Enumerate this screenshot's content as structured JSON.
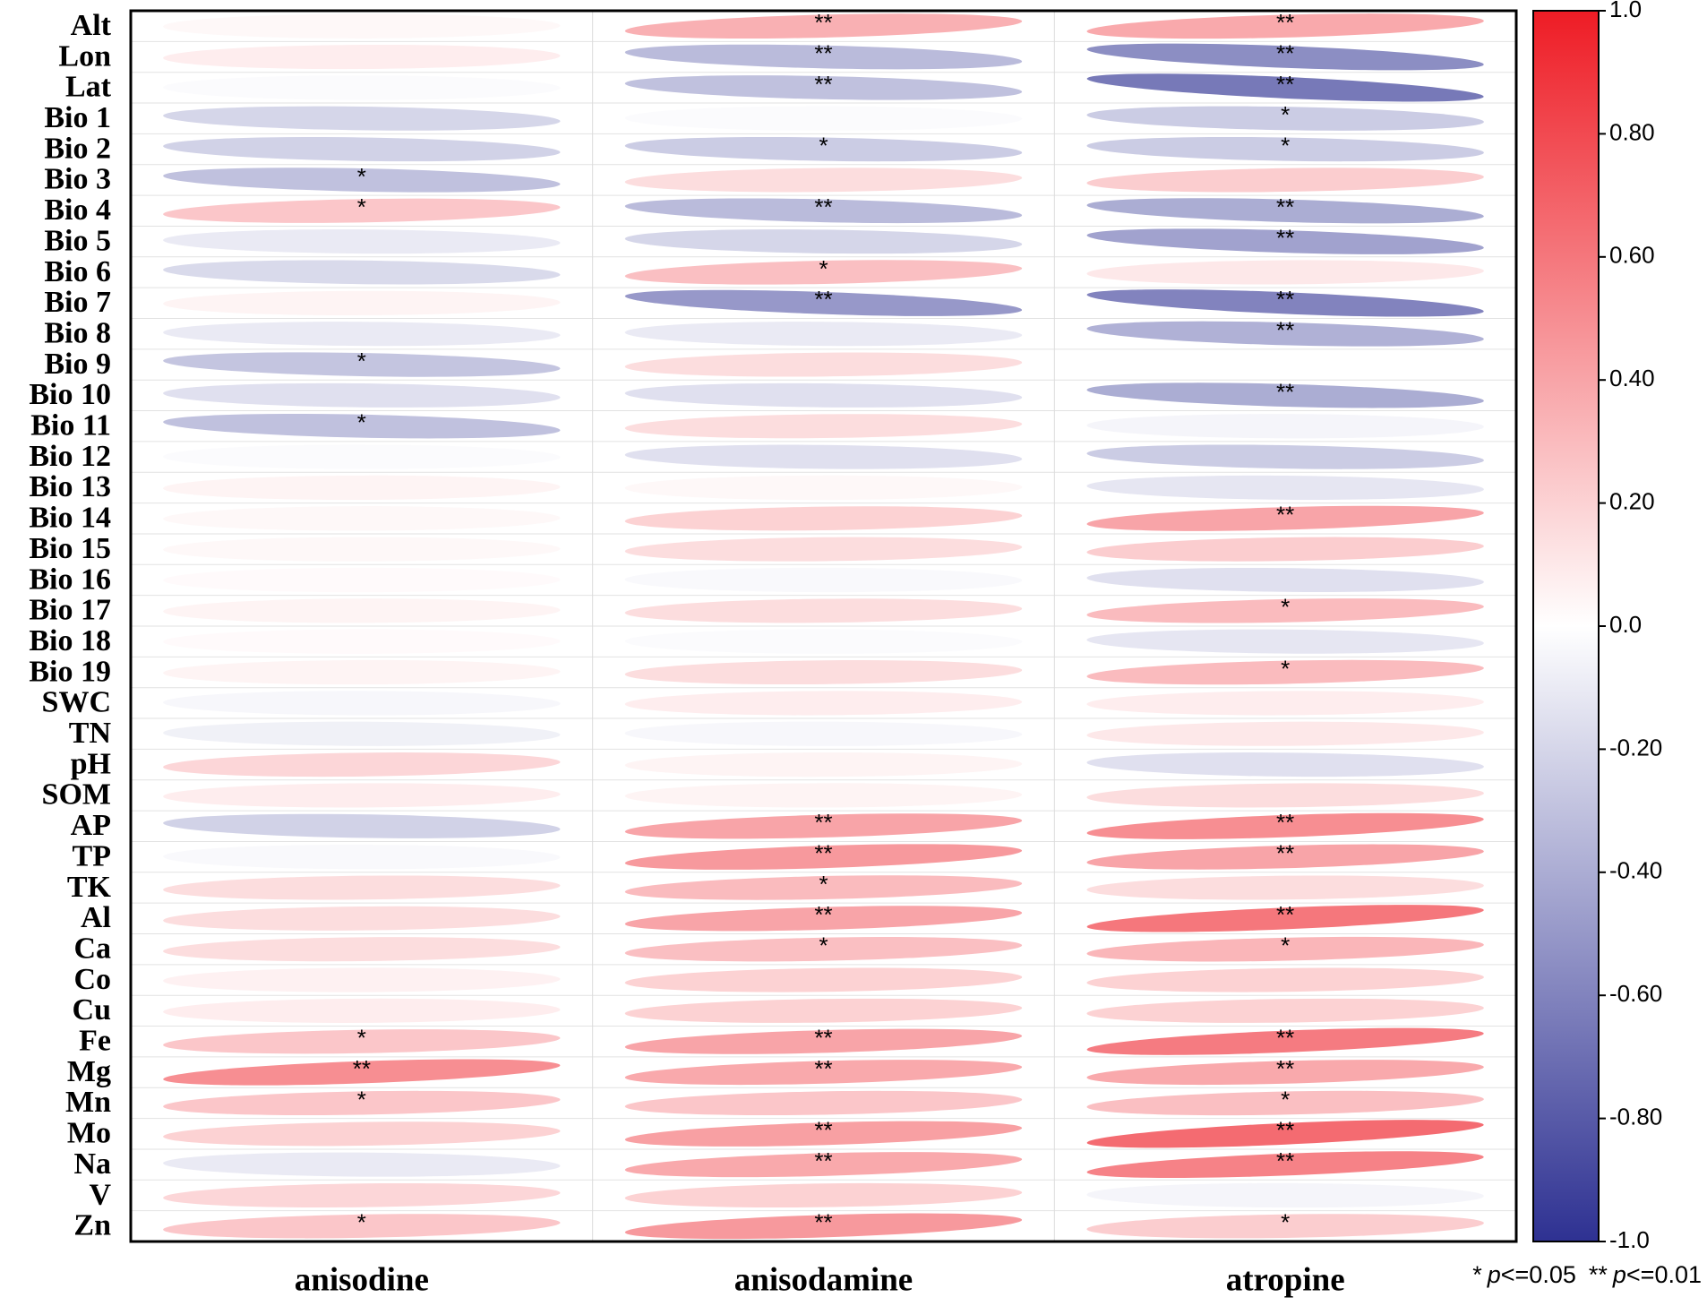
{
  "chart_data": {
    "type": "correlation-ellipse",
    "categories": [
      "Alt",
      "Lon",
      "Lat",
      "Bio 1",
      "Bio 2",
      "Bio 3",
      "Bio 4",
      "Bio 5",
      "Bio 6",
      "Bio 7",
      "Bio 8",
      "Bio 9",
      "Bio 10",
      "Bio 11",
      "Bio 12",
      "Bio 13",
      "Bio 14",
      "Bio 15",
      "Bio 16",
      "Bio 17",
      "Bio 18",
      "Bio 19",
      "SWC",
      "TN",
      "pH",
      "SOM",
      "AP",
      "TP",
      "TK",
      "Al",
      "Ca",
      "Co",
      "Cu",
      "Fe",
      "Mg",
      "Mn",
      "Mo",
      "Na",
      "V",
      "Zn"
    ],
    "series": [
      {
        "name": "anisodine",
        "values": [
          0.03,
          0.08,
          -0.02,
          -0.2,
          -0.22,
          -0.3,
          0.25,
          -0.1,
          -0.18,
          0.05,
          -0.1,
          -0.28,
          -0.15,
          -0.3,
          -0.02,
          0.05,
          0.03,
          0.03,
          0.02,
          0.05,
          0.02,
          0.05,
          -0.04,
          -0.07,
          0.18,
          0.08,
          -0.22,
          -0.03,
          0.15,
          0.15,
          0.15,
          0.06,
          0.08,
          0.25,
          0.5,
          0.25,
          0.2,
          -0.1,
          0.18,
          0.25
        ],
        "significance": [
          null,
          null,
          null,
          null,
          null,
          "*",
          "*",
          null,
          null,
          null,
          null,
          "*",
          null,
          "*",
          null,
          null,
          null,
          null,
          null,
          null,
          null,
          null,
          null,
          null,
          null,
          null,
          null,
          null,
          null,
          null,
          null,
          null,
          null,
          "*",
          "**",
          "*",
          null,
          null,
          null,
          "*"
        ]
      },
      {
        "name": "anisodamine",
        "values": [
          0.35,
          -0.33,
          -0.3,
          -0.02,
          -0.25,
          0.15,
          -0.33,
          -0.2,
          0.28,
          -0.5,
          -0.1,
          0.15,
          -0.15,
          0.15,
          -0.15,
          0.03,
          0.2,
          0.15,
          -0.03,
          0.15,
          -0.02,
          0.15,
          0.08,
          -0.04,
          0.05,
          0.05,
          0.4,
          0.45,
          0.3,
          0.4,
          0.28,
          0.2,
          0.2,
          0.4,
          0.38,
          0.25,
          0.42,
          0.38,
          0.2,
          0.45
        ],
        "significance": [
          "**",
          "**",
          "**",
          null,
          "*",
          null,
          "**",
          null,
          "*",
          "**",
          null,
          null,
          null,
          null,
          null,
          null,
          null,
          null,
          null,
          null,
          null,
          null,
          null,
          null,
          null,
          null,
          "**",
          "**",
          "*",
          "**",
          "*",
          null,
          null,
          "**",
          "**",
          null,
          "**",
          "**",
          null,
          "**"
        ]
      },
      {
        "name": "atropine",
        "values": [
          0.38,
          -0.55,
          -0.65,
          -0.25,
          -0.25,
          0.22,
          -0.4,
          -0.45,
          0.1,
          -0.6,
          -0.38,
          0,
          -0.4,
          -0.05,
          -0.25,
          -0.12,
          0.4,
          0.22,
          -0.15,
          0.3,
          -0.12,
          0.3,
          0.08,
          0.1,
          -0.15,
          0.15,
          0.5,
          0.4,
          0.15,
          0.6,
          0.32,
          0.2,
          0.2,
          0.58,
          0.38,
          0.28,
          0.65,
          0.55,
          -0.05,
          0.22
        ],
        "significance": [
          "**",
          "**",
          "**",
          "*",
          "*",
          null,
          "**",
          "**",
          null,
          "**",
          "**",
          null,
          "**",
          null,
          null,
          null,
          "**",
          null,
          null,
          "*",
          null,
          "*",
          null,
          null,
          null,
          null,
          "**",
          "**",
          null,
          "**",
          "*",
          null,
          null,
          "**",
          "**",
          "*",
          "**",
          "**",
          null,
          "*"
        ]
      }
    ],
    "colormap": {
      "low": "#2e3192",
      "mid": "#ffffff",
      "high": "#ee1c25"
    },
    "ylim": [
      -1,
      1
    ],
    "yticks": [
      {
        "value": 1,
        "label": "1.0"
      },
      {
        "value": 0.8,
        "label": "0.80"
      },
      {
        "value": 0.6,
        "label": "0.60"
      },
      {
        "value": 0.4,
        "label": "0.40"
      },
      {
        "value": 0.2,
        "label": "0.20"
      },
      {
        "value": 0,
        "label": "0.0"
      },
      {
        "value": -0.2,
        "label": "-0.20"
      },
      {
        "value": -0.4,
        "label": "-0.40"
      },
      {
        "value": -0.6,
        "label": "-0.60"
      },
      {
        "value": -0.8,
        "label": "-0.80"
      },
      {
        "value": -1,
        "label": "-1.0"
      }
    ],
    "grid": true,
    "significance_legend": [
      {
        "symbol": "*",
        "p": "p",
        "threshold": "<=0.05"
      },
      {
        "symbol": "**",
        "p": "p",
        "threshold": "<=0.01"
      }
    ]
  }
}
